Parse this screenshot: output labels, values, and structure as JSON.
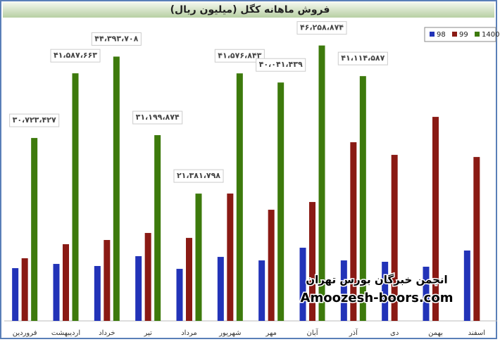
{
  "chart_data": {
    "type": "bar",
    "title": "فروش ماهانه کگل (میلیون ریال)",
    "categories": [
      "فروردین",
      "اردیبهشت",
      "خرداد",
      "تیر",
      "مرداد",
      "شهریور",
      "مهر",
      "آبان",
      "آذر",
      "دی",
      "بهمن",
      "اسفند"
    ],
    "series": [
      {
        "name": "98",
        "color": "#2233b8",
        "values": [
          8860000,
          9570000,
          9220000,
          10870000,
          8740000,
          10750000,
          10160000,
          12290000,
          10160000,
          9930000,
          9100000,
          11820000
        ]
      },
      {
        "name": "99",
        "color": "#8a1a14",
        "values": [
          10520000,
          12880000,
          13590000,
          14770000,
          13940000,
          21390000,
          18670000,
          19970000,
          30010000,
          27890000,
          34270000,
          27530000
        ]
      },
      {
        "name": "1400",
        "color": "#3d7a0c",
        "values": [
          30723427,
          41587663,
          44393708,
          31199874,
          21381798,
          41576843,
          40041439,
          46258874,
          41114587,
          null,
          null,
          null
        ],
        "value_labels": [
          "۳۰،۷۲۳،۴۲۷",
          "۴۱،۵۸۷،۶۶۳",
          "۴۴،۳۹۳،۷۰۸",
          "۳۱،۱۹۹،۸۷۴",
          "۲۱،۳۸۱،۷۹۸",
          "۴۱،۵۷۶،۸۴۳",
          "۴۰،۰۴۱،۴۳۹",
          "۴۶،۲۵۸،۸۷۴",
          "۴۱،۱۱۴،۵۸۷",
          null,
          null,
          null
        ]
      }
    ],
    "ylim": [
      0,
      50000000
    ],
    "legend": "top-right",
    "annotations": [
      "انجمن خبرگان بورس تهران",
      "Amoozesh-boors.com"
    ]
  }
}
